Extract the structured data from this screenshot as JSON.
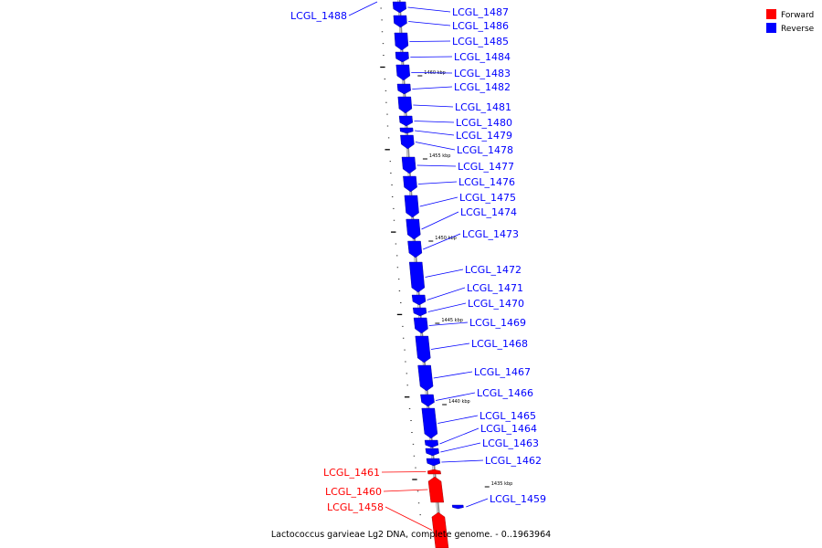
{
  "caption": "Lactococcus garvieae Lg2 DNA, complete genome. - 0..1963964",
  "legend": [
    {
      "label": "Forward",
      "color": "#ff0000"
    },
    {
      "label": "Reverse",
      "color": "#0000ff"
    }
  ],
  "colors": {
    "forward": "#ff0000",
    "reverse": "#0000ff",
    "backbone": "#999999"
  },
  "kbp_marks": [
    "1460 kbp",
    "1455 kbp",
    "1450 kbp",
    "1445 kbp",
    "1440 kbp",
    "1435 kbp"
  ],
  "genes": [
    {
      "name": "LCGL_1488",
      "strand": "reverse"
    },
    {
      "name": "LCGL_1487",
      "strand": "reverse"
    },
    {
      "name": "LCGL_1486",
      "strand": "reverse"
    },
    {
      "name": "LCGL_1485",
      "strand": "reverse"
    },
    {
      "name": "LCGL_1484",
      "strand": "reverse"
    },
    {
      "name": "LCGL_1483",
      "strand": "reverse"
    },
    {
      "name": "LCGL_1482",
      "strand": "reverse"
    },
    {
      "name": "LCGL_1481",
      "strand": "reverse"
    },
    {
      "name": "LCGL_1480",
      "strand": "reverse"
    },
    {
      "name": "LCGL_1479",
      "strand": "reverse"
    },
    {
      "name": "LCGL_1478",
      "strand": "reverse"
    },
    {
      "name": "LCGL_1477",
      "strand": "reverse"
    },
    {
      "name": "LCGL_1476",
      "strand": "reverse"
    },
    {
      "name": "LCGL_1475",
      "strand": "reverse"
    },
    {
      "name": "LCGL_1474",
      "strand": "reverse"
    },
    {
      "name": "LCGL_1473",
      "strand": "reverse"
    },
    {
      "name": "LCGL_1472",
      "strand": "reverse"
    },
    {
      "name": "LCGL_1471",
      "strand": "reverse"
    },
    {
      "name": "LCGL_1470",
      "strand": "reverse"
    },
    {
      "name": "LCGL_1469",
      "strand": "reverse"
    },
    {
      "name": "LCGL_1468",
      "strand": "reverse"
    },
    {
      "name": "LCGL_1467",
      "strand": "reverse"
    },
    {
      "name": "LCGL_1466",
      "strand": "reverse"
    },
    {
      "name": "LCGL_1465",
      "strand": "reverse"
    },
    {
      "name": "LCGL_1464",
      "strand": "reverse"
    },
    {
      "name": "LCGL_1463",
      "strand": "reverse"
    },
    {
      "name": "LCGL_1462",
      "strand": "reverse"
    },
    {
      "name": "LCGL_1461",
      "strand": "forward"
    },
    {
      "name": "LCGL_1460",
      "strand": "forward"
    },
    {
      "name": "LCGL_1459",
      "strand": "reverse"
    },
    {
      "name": "LCGL_1458",
      "strand": "forward"
    }
  ]
}
